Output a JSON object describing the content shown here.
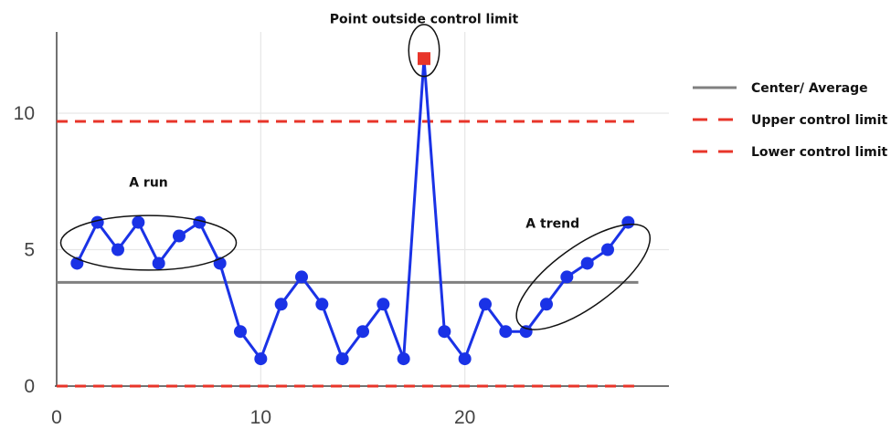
{
  "chart_data": {
    "type": "line",
    "title": "",
    "xlabel": "",
    "ylabel": "",
    "xlim": [
      0,
      30
    ],
    "ylim": [
      0,
      13
    ],
    "x_ticks": [
      "0",
      "10",
      "20"
    ],
    "y_ticks": [
      "0",
      "5",
      "10"
    ],
    "grid": true,
    "legend_position": "right",
    "x": [
      1,
      2,
      3,
      4,
      5,
      6,
      7,
      8,
      9,
      10,
      11,
      12,
      13,
      14,
      15,
      16,
      17,
      18,
      19,
      20,
      21,
      22,
      23,
      24,
      25,
      26,
      27,
      28
    ],
    "series": [
      {
        "values": [
          4.5,
          6,
          5,
          6,
          4.5,
          5.5,
          6,
          4.5,
          2,
          1,
          3,
          4,
          3,
          1,
          2,
          3,
          1,
          12,
          2,
          1,
          3,
          2,
          2,
          3,
          4,
          4.5,
          5,
          6
        ],
        "color": "#1a32e6",
        "outlier_index": 17,
        "outlier_color": "#e8352a"
      }
    ],
    "reference_lines": [
      {
        "name": "Center/ Average",
        "y": 3.8,
        "x_range": [
          0,
          28.5
        ],
        "color": "#808080",
        "style": "solid"
      },
      {
        "name": "Upper control limit",
        "y": 9.7,
        "x_range": [
          0,
          28.5
        ],
        "color": "#e8352a",
        "style": "dashed"
      },
      {
        "name": "Lower control limit",
        "y": 0,
        "x_range": [
          0,
          28.5
        ],
        "color": "#e8352a",
        "style": "dashed"
      }
    ],
    "annotations": [
      {
        "text": "Point outside control limit",
        "x": 18,
        "y": 13.3
      },
      {
        "text": "A run",
        "x": 4.5,
        "y": 7.3
      },
      {
        "text": "A trend",
        "x": 24.3,
        "y": 5.8
      }
    ],
    "highlight_ellipses": [
      {
        "label": "run",
        "center": [
          4.5,
          5.25
        ],
        "rx": 4.3,
        "ry": 1.0,
        "angle": 0
      },
      {
        "label": "outlier",
        "center": [
          18,
          12.3
        ],
        "rx": 0.75,
        "ry": 0.95,
        "angle": 0
      },
      {
        "label": "trend",
        "center": [
          25.8,
          4.0
        ],
        "rx": 3.9,
        "ry": 1.1,
        "angle": -36
      }
    ]
  }
}
